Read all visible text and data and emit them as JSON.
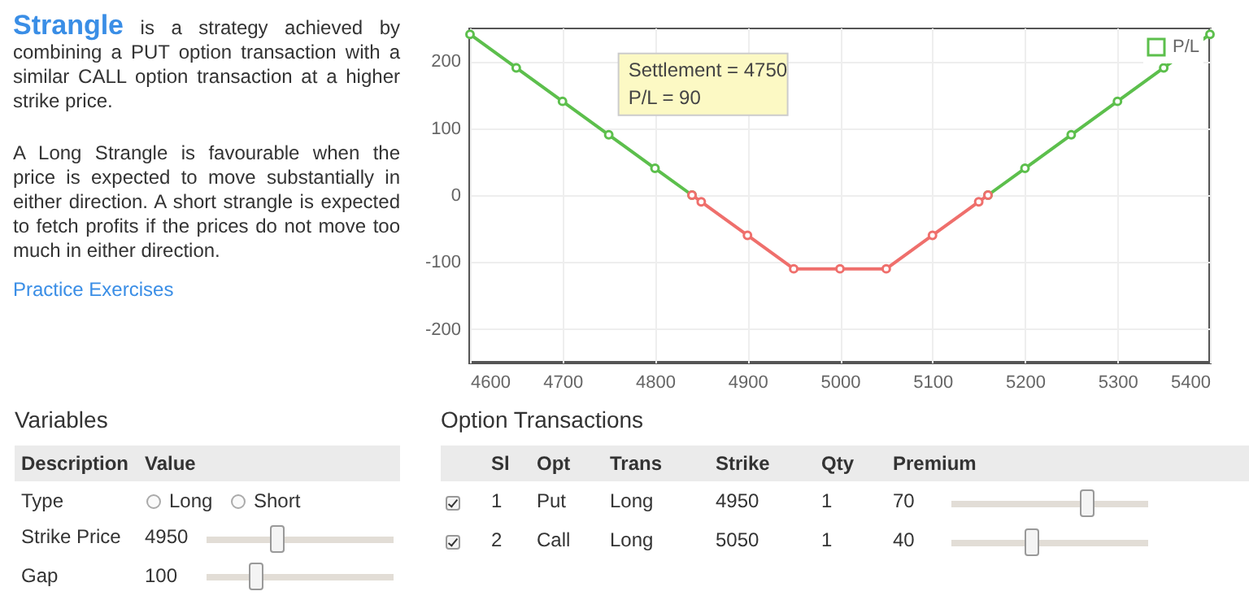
{
  "chart_data": {
    "type": "line",
    "title": "Strangle",
    "x": [
      4600,
      4650,
      4700,
      4750,
      4800,
      4840,
      4850,
      4900,
      4950,
      5000,
      5050,
      5100,
      5150,
      5160,
      5200,
      5250,
      5300,
      5350,
      5400
    ],
    "series": [
      {
        "name": "P/L",
        "color": "#5cbf4c",
        "values": [
          240,
          190,
          140,
          90,
          40,
          0,
          null,
          null,
          null,
          null,
          null,
          null,
          null,
          0,
          40,
          90,
          140,
          190,
          240
        ]
      },
      {
        "color": "#ef6f6c",
        "values": [
          null,
          null,
          null,
          null,
          null,
          0,
          -10,
          -60,
          -110,
          -110,
          -110,
          -60,
          -10,
          0,
          null,
          null,
          null,
          null,
          null
        ]
      }
    ],
    "xlim": [
      4600,
      5400
    ],
    "xticks": [
      4600,
      4700,
      4800,
      4900,
      5000,
      5100,
      5200,
      5300,
      5400
    ],
    "ylim": [
      -250,
      250
    ],
    "yticks": [
      -200,
      -100,
      0,
      100,
      200
    ],
    "grid": true,
    "legend": "top right",
    "marker": "circle",
    "annotations": [
      {
        "text": "Settlement = 4750",
        "x": 4750,
        "y": 90
      },
      {
        "text": "P/L = 90",
        "x": 4750,
        "y": 90
      },
      "is a strategy achieved by combining a PUT option transaction with a similar CALL option transaction at a higher strike price.",
      "A Long Strangle is favourable when the price is expected to move substantially in either direction. A short strangle is expected to fetch profits if the prices do not move too much in either direction.",
      "Practice Exercises",
      "Variables",
      "Description",
      "Value",
      "Type",
      "Long",
      "Short",
      "Strike Price",
      "4950",
      "Gap",
      "100",
      "Option Transactions",
      "Sl",
      "Opt",
      "Trans",
      "Strike",
      "Qty",
      "Premium",
      "1",
      "Put",
      "Long",
      "4950",
      "1",
      "70",
      "2",
      "Call",
      "Long",
      "5050",
      "1",
      "40"
    ]
  }
}
